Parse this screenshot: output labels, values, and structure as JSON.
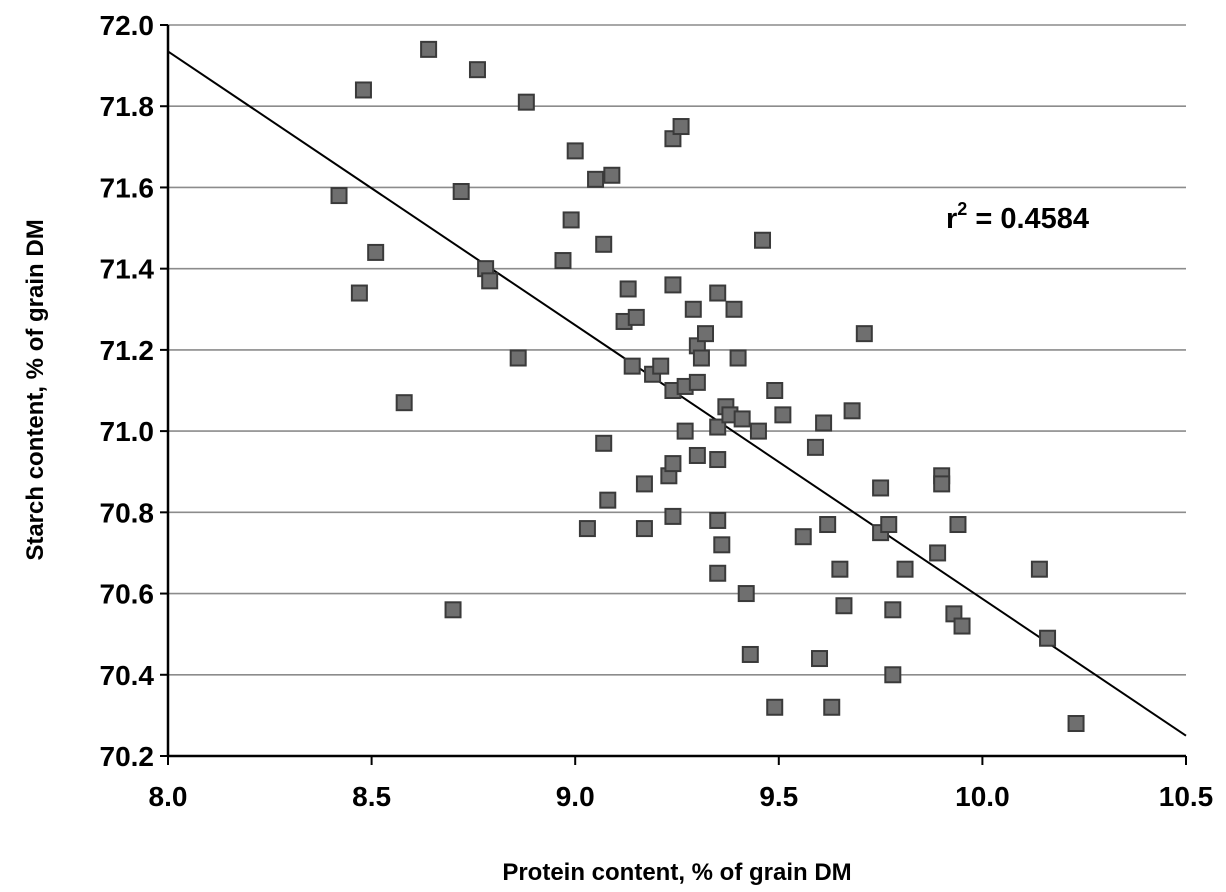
{
  "chart_data": {
    "type": "scatter",
    "title": "",
    "xlabel": "Protein content, % of grain DM",
    "ylabel": "Starch content, % of grain DM",
    "xlim": [
      8.0,
      10.5
    ],
    "ylim": [
      70.2,
      72.0
    ],
    "x_ticks": [
      "8.0",
      "8.5",
      "9.0",
      "9.5",
      "10.0",
      "10.5"
    ],
    "y_ticks": [
      "70.2",
      "70.4",
      "70.6",
      "70.8",
      "71.0",
      "71.2",
      "71.4",
      "71.6",
      "71.8",
      "72.0"
    ],
    "grid": "horizontal",
    "legend": "none",
    "annotation": {
      "text": "r",
      "superscript": "2",
      "rest": " = 0.4584"
    },
    "trendline": {
      "x": [
        8.0,
        10.5
      ],
      "y": [
        71.935,
        70.25
      ]
    },
    "colors": {
      "marker_fill": "#6f6f6f",
      "marker_edge": "#3a3a3a",
      "gridline": "#8c8c8c",
      "line": "#000000"
    },
    "points": [
      [
        8.42,
        71.58
      ],
      [
        8.47,
        71.34
      ],
      [
        8.48,
        71.84
      ],
      [
        8.51,
        71.44
      ],
      [
        8.58,
        71.07
      ],
      [
        8.64,
        71.94
      ],
      [
        8.7,
        70.56
      ],
      [
        8.72,
        71.59
      ],
      [
        8.76,
        71.89
      ],
      [
        8.78,
        71.4
      ],
      [
        8.79,
        71.37
      ],
      [
        8.86,
        71.18
      ],
      [
        8.88,
        71.81
      ],
      [
        8.97,
        71.42
      ],
      [
        8.99,
        71.52
      ],
      [
        9.0,
        71.69
      ],
      [
        9.05,
        71.62
      ],
      [
        9.07,
        71.46
      ],
      [
        9.07,
        70.97
      ],
      [
        9.08,
        70.83
      ],
      [
        9.09,
        71.63
      ],
      [
        9.03,
        70.76
      ],
      [
        9.12,
        71.27
      ],
      [
        9.13,
        71.35
      ],
      [
        9.14,
        71.16
      ],
      [
        9.15,
        71.28
      ],
      [
        9.17,
        70.87
      ],
      [
        9.17,
        70.76
      ],
      [
        9.19,
        71.14
      ],
      [
        9.21,
        71.16
      ],
      [
        9.23,
        70.89
      ],
      [
        9.24,
        70.92
      ],
      [
        9.24,
        70.79
      ],
      [
        9.24,
        71.1
      ],
      [
        9.24,
        71.36
      ],
      [
        9.24,
        71.72
      ],
      [
        9.26,
        71.75
      ],
      [
        9.27,
        71.0
      ],
      [
        9.27,
        71.11
      ],
      [
        9.29,
        71.3
      ],
      [
        9.3,
        71.12
      ],
      [
        9.3,
        71.21
      ],
      [
        9.3,
        70.94
      ],
      [
        9.31,
        71.18
      ],
      [
        9.32,
        71.24
      ],
      [
        9.35,
        71.01
      ],
      [
        9.35,
        71.34
      ],
      [
        9.35,
        70.93
      ],
      [
        9.35,
        70.78
      ],
      [
        9.35,
        70.65
      ],
      [
        9.36,
        70.72
      ],
      [
        9.37,
        71.06
      ],
      [
        9.38,
        71.04
      ],
      [
        9.39,
        71.3
      ],
      [
        9.4,
        71.18
      ],
      [
        9.41,
        71.03
      ],
      [
        9.42,
        70.6
      ],
      [
        9.43,
        70.45
      ],
      [
        9.45,
        71.0
      ],
      [
        9.46,
        71.47
      ],
      [
        9.49,
        71.1
      ],
      [
        9.49,
        70.32
      ],
      [
        9.51,
        71.04
      ],
      [
        9.56,
        70.74
      ],
      [
        9.59,
        70.96
      ],
      [
        9.6,
        70.44
      ],
      [
        9.61,
        71.02
      ],
      [
        9.62,
        70.77
      ],
      [
        9.63,
        70.32
      ],
      [
        9.65,
        70.66
      ],
      [
        9.66,
        70.57
      ],
      [
        9.68,
        71.05
      ],
      [
        9.71,
        71.24
      ],
      [
        9.75,
        70.86
      ],
      [
        9.75,
        70.75
      ],
      [
        9.77,
        70.77
      ],
      [
        9.78,
        70.56
      ],
      [
        9.78,
        70.4
      ],
      [
        9.81,
        70.66
      ],
      [
        9.89,
        70.7
      ],
      [
        9.9,
        70.89
      ],
      [
        9.9,
        70.87
      ],
      [
        9.93,
        70.55
      ],
      [
        9.94,
        70.77
      ],
      [
        9.95,
        70.52
      ],
      [
        10.14,
        70.66
      ],
      [
        10.16,
        70.49
      ],
      [
        10.23,
        70.28
      ]
    ]
  }
}
